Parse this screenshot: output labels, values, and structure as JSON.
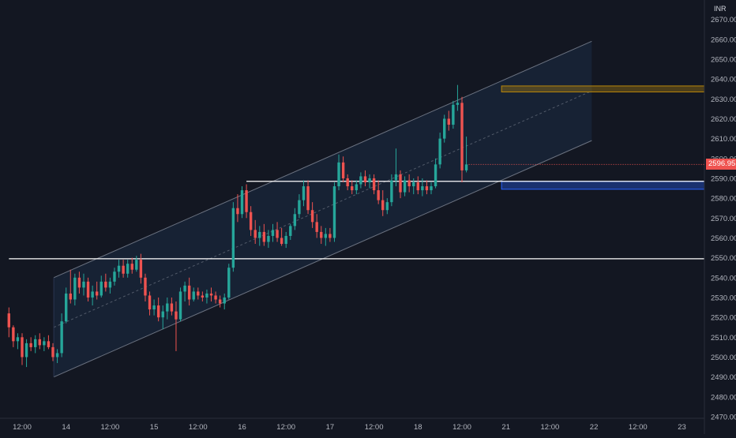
{
  "chart_data": {
    "type": "candlestick",
    "currency": "INR",
    "last_price": "2596.95",
    "ylim": [
      2470,
      2672
    ],
    "y_ticks": [
      2470,
      2480,
      2490,
      2500,
      2510,
      2520,
      2530,
      2540,
      2550,
      2560,
      2570,
      2580,
      2590,
      2600,
      2610,
      2620,
      2630,
      2640,
      2650,
      2660,
      2670
    ],
    "y_tick_labels": [
      "2470.00",
      "2480.00",
      "2490.00",
      "2500.00",
      "2510.00",
      "2520.00",
      "2530.00",
      "2540.00",
      "2550.00",
      "2560.00",
      "2570.00",
      "2580.00",
      "2590.00",
      "2600.00",
      "2610.00",
      "2620.00",
      "2630.00",
      "2640.00",
      "2650.00",
      "2660.00",
      "2670.00"
    ],
    "x_ticks": [
      {
        "label": "12:00",
        "t": 0.0
      },
      {
        "label": "14",
        "t": 1.0
      },
      {
        "label": "12:00",
        "t": 2.0
      },
      {
        "label": "15",
        "t": 3.0
      },
      {
        "label": "12:00",
        "t": 4.0
      },
      {
        "label": "16",
        "t": 5.0
      },
      {
        "label": "12:00",
        "t": 6.0
      },
      {
        "label": "17",
        "t": 7.0
      },
      {
        "label": "12:00",
        "t": 8.0
      },
      {
        "label": "18",
        "t": 9.0
      },
      {
        "label": "12:00",
        "t": 10.0
      },
      {
        "label": "21",
        "t": 11.0
      },
      {
        "label": "12:00",
        "t": 12.0
      },
      {
        "label": "22",
        "t": 13.0
      },
      {
        "label": "12:00",
        "t": 14.0
      },
      {
        "label": "23",
        "t": 15.0
      }
    ],
    "horizontal_lines": [
      {
        "price": 2549.5,
        "t_start": -0.3,
        "t_end": 15.6,
        "color": "#ffffff"
      },
      {
        "price": 2588.5,
        "t_start": 5.1,
        "t_end": 15.6,
        "color": "#ffffff"
      }
    ],
    "zones": [
      {
        "price_low": 2633.5,
        "price_high": 2636.5,
        "t_start": 10.9,
        "t_end": 15.6,
        "color": "#b8860b"
      },
      {
        "price_low": 2584.5,
        "price_high": 2588.5,
        "t_start": 10.9,
        "t_end": 15.6,
        "color": "#2962ff"
      }
    ],
    "channel": {
      "t_start": 0.72,
      "t_end": 12.95,
      "upper": [
        2540,
        2659
      ],
      "middle": [
        2515,
        2634
      ],
      "lower": [
        2490,
        2609
      ]
    },
    "candles": [
      [
        -0.3,
        2522,
        2525,
        2510,
        2515
      ],
      [
        -0.2,
        2515,
        2516,
        2505,
        2508
      ],
      [
        -0.1,
        2508,
        2512,
        2504,
        2510
      ],
      [
        0.0,
        2510,
        2512,
        2496,
        2500
      ],
      [
        0.1,
        2500,
        2509,
        2495,
        2507
      ],
      [
        0.2,
        2507,
        2510,
        2503,
        2505
      ],
      [
        0.3,
        2505,
        2511,
        2502,
        2509
      ],
      [
        0.4,
        2509,
        2512,
        2504,
        2506
      ],
      [
        0.5,
        2506,
        2510,
        2503,
        2508
      ],
      [
        0.6,
        2508,
        2511,
        2504,
        2505
      ],
      [
        0.7,
        2505,
        2507,
        2498,
        2500
      ],
      [
        0.8,
        2500,
        2504,
        2497,
        2502
      ],
      [
        0.9,
        2502,
        2522,
        2500,
        2518
      ],
      [
        1.0,
        2518,
        2535,
        2517,
        2532
      ],
      [
        1.1,
        2532,
        2544,
        2527,
        2529
      ],
      [
        1.2,
        2529,
        2542,
        2526,
        2540
      ],
      [
        1.3,
        2540,
        2543,
        2532,
        2535
      ],
      [
        1.4,
        2535,
        2542,
        2531,
        2538
      ],
      [
        1.5,
        2538,
        2540,
        2528,
        2530
      ],
      [
        1.6,
        2530,
        2536,
        2526,
        2533
      ],
      [
        1.7,
        2533,
        2538,
        2529,
        2531
      ],
      [
        1.8,
        2531,
        2541,
        2530,
        2538
      ],
      [
        1.9,
        2538,
        2542,
        2533,
        2535
      ],
      [
        2.0,
        2535,
        2540,
        2532,
        2538
      ],
      [
        2.1,
        2538,
        2545,
        2536,
        2543
      ],
      [
        2.2,
        2543,
        2549,
        2540,
        2546
      ],
      [
        2.3,
        2546,
        2549,
        2540,
        2542
      ],
      [
        2.4,
        2542,
        2549,
        2540,
        2547
      ],
      [
        2.5,
        2547,
        2550,
        2542,
        2544
      ],
      [
        2.6,
        2544,
        2551,
        2543,
        2549
      ],
      [
        2.7,
        2549,
        2552,
        2537,
        2540
      ],
      [
        2.8,
        2540,
        2542,
        2528,
        2531
      ],
      [
        2.9,
        2531,
        2533,
        2521,
        2524
      ],
      [
        3.0,
        2524,
        2529,
        2521,
        2526
      ],
      [
        3.1,
        2526,
        2530,
        2518,
        2520
      ],
      [
        3.2,
        2520,
        2526,
        2514,
        2523
      ],
      [
        3.3,
        2523,
        2530,
        2519,
        2527
      ],
      [
        3.4,
        2527,
        2530,
        2521,
        2523
      ],
      [
        3.5,
        2523,
        2528,
        2503,
        2519
      ],
      [
        3.6,
        2519,
        2535,
        2518,
        2533
      ],
      [
        3.7,
        2533,
        2538,
        2528,
        2536
      ],
      [
        3.8,
        2536,
        2540,
        2526,
        2529
      ],
      [
        3.9,
        2529,
        2535,
        2528,
        2533
      ],
      [
        4.0,
        2533,
        2535,
        2529,
        2531
      ],
      [
        4.1,
        2531,
        2533,
        2528,
        2530
      ],
      [
        4.2,
        2530,
        2534,
        2527,
        2532
      ],
      [
        4.3,
        2532,
        2535,
        2528,
        2531
      ],
      [
        4.4,
        2531,
        2533,
        2527,
        2529
      ],
      [
        4.5,
        2529,
        2531,
        2525,
        2527
      ],
      [
        4.6,
        2527,
        2532,
        2524,
        2530
      ],
      [
        4.7,
        2530,
        2547,
        2529,
        2545
      ],
      [
        4.8,
        2545,
        2578,
        2543,
        2575
      ],
      [
        4.9,
        2575,
        2582,
        2568,
        2572
      ],
      [
        5.0,
        2572,
        2586,
        2570,
        2584
      ],
      [
        5.1,
        2584,
        2587,
        2570,
        2573
      ],
      [
        5.2,
        2573,
        2576,
        2561,
        2564
      ],
      [
        5.3,
        2564,
        2569,
        2557,
        2560
      ],
      [
        5.4,
        2560,
        2566,
        2556,
        2563
      ],
      [
        5.5,
        2563,
        2567,
        2556,
        2558
      ],
      [
        5.6,
        2558,
        2564,
        2555,
        2561
      ],
      [
        5.7,
        2561,
        2567,
        2558,
        2564
      ],
      [
        5.8,
        2564,
        2568,
        2558,
        2560
      ],
      [
        5.9,
        2560,
        2565,
        2556,
        2557
      ],
      [
        6.0,
        2557,
        2563,
        2555,
        2561
      ],
      [
        6.1,
        2561,
        2567,
        2559,
        2566
      ],
      [
        6.2,
        2566,
        2575,
        2564,
        2572
      ],
      [
        6.3,
        2572,
        2582,
        2570,
        2579
      ],
      [
        6.4,
        2579,
        2589,
        2576,
        2586
      ],
      [
        6.5,
        2586,
        2589,
        2572,
        2574
      ],
      [
        6.6,
        2574,
        2578,
        2565,
        2568
      ],
      [
        6.7,
        2568,
        2572,
        2560,
        2563
      ],
      [
        6.8,
        2563,
        2566,
        2557,
        2560
      ],
      [
        6.9,
        2560,
        2565,
        2556,
        2562
      ],
      [
        7.0,
        2562,
        2565,
        2558,
        2560
      ],
      [
        7.1,
        2560,
        2588,
        2558,
        2586
      ],
      [
        7.2,
        2586,
        2602,
        2584,
        2598
      ],
      [
        7.3,
        2598,
        2601,
        2588,
        2590
      ],
      [
        7.4,
        2590,
        2592,
        2584,
        2586
      ],
      [
        7.5,
        2586,
        2589,
        2582,
        2584
      ],
      [
        7.6,
        2584,
        2589,
        2582,
        2587
      ],
      [
        7.7,
        2587,
        2593,
        2585,
        2591
      ],
      [
        7.8,
        2591,
        2594,
        2586,
        2588
      ],
      [
        7.9,
        2588,
        2592,
        2585,
        2590
      ],
      [
        8.0,
        2590,
        2592,
        2582,
        2584
      ],
      [
        8.1,
        2584,
        2589,
        2577,
        2579
      ],
      [
        8.2,
        2579,
        2584,
        2571,
        2574
      ],
      [
        8.3,
        2574,
        2580,
        2572,
        2578
      ],
      [
        8.4,
        2578,
        2592,
        2576,
        2589
      ],
      [
        8.5,
        2589,
        2605,
        2586,
        2592
      ],
      [
        8.6,
        2592,
        2594,
        2580,
        2583
      ],
      [
        8.7,
        2583,
        2591,
        2581,
        2589
      ],
      [
        8.8,
        2589,
        2592,
        2583,
        2586
      ],
      [
        8.9,
        2586,
        2590,
        2582,
        2588
      ],
      [
        9.0,
        2588,
        2591,
        2582,
        2584
      ],
      [
        9.1,
        2584,
        2590,
        2581,
        2586
      ],
      [
        9.2,
        2586,
        2589,
        2582,
        2584
      ],
      [
        9.3,
        2584,
        2588,
        2582,
        2586
      ],
      [
        9.4,
        2586,
        2600,
        2585,
        2597
      ],
      [
        9.5,
        2597,
        2613,
        2595,
        2610
      ],
      [
        9.6,
        2610,
        2622,
        2608,
        2620
      ],
      [
        9.7,
        2620,
        2624,
        2614,
        2617
      ],
      [
        9.8,
        2617,
        2629,
        2615,
        2627
      ],
      [
        9.9,
        2627,
        2637,
        2624,
        2628
      ],
      [
        10.0,
        2628,
        2631,
        2588,
        2594
      ],
      [
        10.1,
        2594,
        2611,
        2593,
        2597
      ]
    ]
  }
}
